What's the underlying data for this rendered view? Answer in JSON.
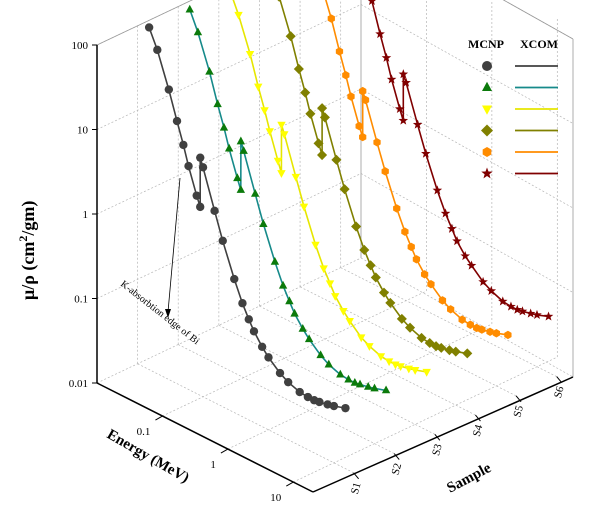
{
  "chart_data": {
    "type": "line",
    "chart_kind": "3d-waterfall-line-scatter",
    "y_axis": {
      "label_main": "μ/ρ (cm",
      "label_sup": "2",
      "label_end": "/gm)",
      "scale": "log",
      "range": [
        0.01,
        100
      ],
      "ticks": [
        "0.01",
        "0.1",
        "1",
        "10",
        "100"
      ]
    },
    "x_axis": {
      "label": "Energy (MeV)",
      "scale": "log",
      "ticks": [
        "0.1",
        "1",
        "10"
      ]
    },
    "z_axis": {
      "label": "Sample",
      "categories": [
        "S1",
        "S2",
        "S3",
        "S4",
        "S5",
        "S6"
      ]
    },
    "legend": {
      "placement": "top-right",
      "header_markers": "MCNP",
      "header_lines": "XCOM"
    },
    "annotation": "K-absorbtion edge of Bi",
    "grid": true,
    "series": [
      {
        "name": "S1",
        "marker": "circle",
        "color": "#404040",
        "line_color": "#404040",
        "x": [
          0.015,
          0.02,
          0.03,
          0.04,
          0.05,
          0.06,
          0.08,
          0.0905,
          0.0906,
          0.1,
          0.15,
          0.2,
          0.3,
          0.4,
          0.5,
          0.6,
          0.8,
          1,
          1.5,
          2,
          3,
          4,
          5,
          6,
          8,
          10,
          15
        ],
        "y": [
          112,
          68,
          27,
          12.8,
          7.3,
          4.4,
          2.2,
          1.7,
          6.5,
          5.2,
          1.86,
          0.92,
          0.38,
          0.22,
          0.155,
          0.12,
          0.088,
          0.072,
          0.055,
          0.048,
          0.043,
          0.042,
          0.042,
          0.043,
          0.045,
          0.047,
          0.052
        ]
      },
      {
        "name": "S2",
        "marker": "triangle-up",
        "color": "#0b7a0b",
        "line_color": "#168a8a",
        "x": [
          0.015,
          0.02,
          0.03,
          0.04,
          0.05,
          0.06,
          0.08,
          0.0905,
          0.0906,
          0.1,
          0.15,
          0.2,
          0.3,
          0.4,
          0.5,
          0.6,
          0.8,
          1,
          1.5,
          2,
          3,
          4,
          5,
          6,
          8,
          10,
          15
        ],
        "y": [
          108,
          65,
          26,
          12,
          6.9,
          4.2,
          2.1,
          1.6,
          6.0,
          4.8,
          1.75,
          0.86,
          0.36,
          0.21,
          0.15,
          0.115,
          0.085,
          0.07,
          0.053,
          0.046,
          0.041,
          0.04,
          0.04,
          0.041,
          0.043,
          0.045,
          0.05
        ]
      },
      {
        "name": "S3",
        "marker": "triangle-down",
        "color": "#ffff00",
        "line_color": "#e6e600",
        "x": [
          0.015,
          0.02,
          0.03,
          0.04,
          0.05,
          0.06,
          0.08,
          0.0905,
          0.0906,
          0.1,
          0.15,
          0.2,
          0.3,
          0.4,
          0.5,
          0.6,
          0.8,
          1,
          1.5,
          2,
          3,
          4,
          5,
          6,
          8,
          10,
          15
        ],
        "y": [
          104,
          62,
          25,
          11.5,
          6.6,
          4.0,
          2.0,
          1.5,
          5.6,
          4.5,
          1.65,
          0.82,
          0.34,
          0.2,
          0.145,
          0.11,
          0.082,
          0.068,
          0.051,
          0.045,
          0.04,
          0.039,
          0.039,
          0.04,
          0.042,
          0.044,
          0.049
        ]
      },
      {
        "name": "S4",
        "marker": "diamond",
        "color": "#808000",
        "line_color": "#808000",
        "x": [
          0.015,
          0.02,
          0.03,
          0.04,
          0.05,
          0.06,
          0.08,
          0.0905,
          0.0906,
          0.1,
          0.15,
          0.2,
          0.3,
          0.4,
          0.5,
          0.6,
          0.8,
          1,
          1.5,
          2,
          3,
          4,
          5,
          6,
          8,
          10,
          15
        ],
        "y": [
          100,
          60,
          24,
          11,
          6.3,
          3.8,
          1.9,
          1.45,
          5.2,
          4.2,
          1.55,
          0.78,
          0.33,
          0.195,
          0.14,
          0.108,
          0.08,
          0.066,
          0.05,
          0.044,
          0.039,
          0.038,
          0.038,
          0.039,
          0.041,
          0.043,
          0.048
        ]
      },
      {
        "name": "S5",
        "marker": "hexagon",
        "color": "#ff8c00",
        "line_color": "#ff8c00",
        "x": [
          0.015,
          0.02,
          0.03,
          0.04,
          0.05,
          0.06,
          0.08,
          0.0905,
          0.0906,
          0.1,
          0.15,
          0.2,
          0.3,
          0.4,
          0.5,
          0.6,
          0.8,
          1,
          1.5,
          2,
          3,
          4,
          5,
          6,
          8,
          10,
          15
        ],
        "y": [
          96,
          57,
          23,
          10.5,
          6.0,
          3.6,
          1.8,
          1.4,
          4.9,
          4.0,
          1.48,
          0.75,
          0.32,
          0.19,
          0.137,
          0.105,
          0.078,
          0.065,
          0.049,
          0.043,
          0.038,
          0.037,
          0.037,
          0.038,
          0.04,
          0.042,
          0.047
        ]
      },
      {
        "name": "S6",
        "marker": "star",
        "color": "#800000",
        "line_color": "#800000",
        "x": [
          0.015,
          0.02,
          0.03,
          0.04,
          0.05,
          0.06,
          0.08,
          0.0905,
          0.0906,
          0.1,
          0.15,
          0.2,
          0.3,
          0.4,
          0.5,
          0.6,
          0.8,
          1,
          1.5,
          2,
          3,
          4,
          5,
          6,
          8,
          10,
          15
        ],
        "y": [
          92,
          55,
          22,
          10,
          5.7,
          3.4,
          1.7,
          1.3,
          4.6,
          3.8,
          1.42,
          0.72,
          0.31,
          0.185,
          0.133,
          0.102,
          0.076,
          0.064,
          0.048,
          0.042,
          0.037,
          0.036,
          0.036,
          0.037,
          0.039,
          0.041,
          0.046
        ]
      }
    ]
  }
}
